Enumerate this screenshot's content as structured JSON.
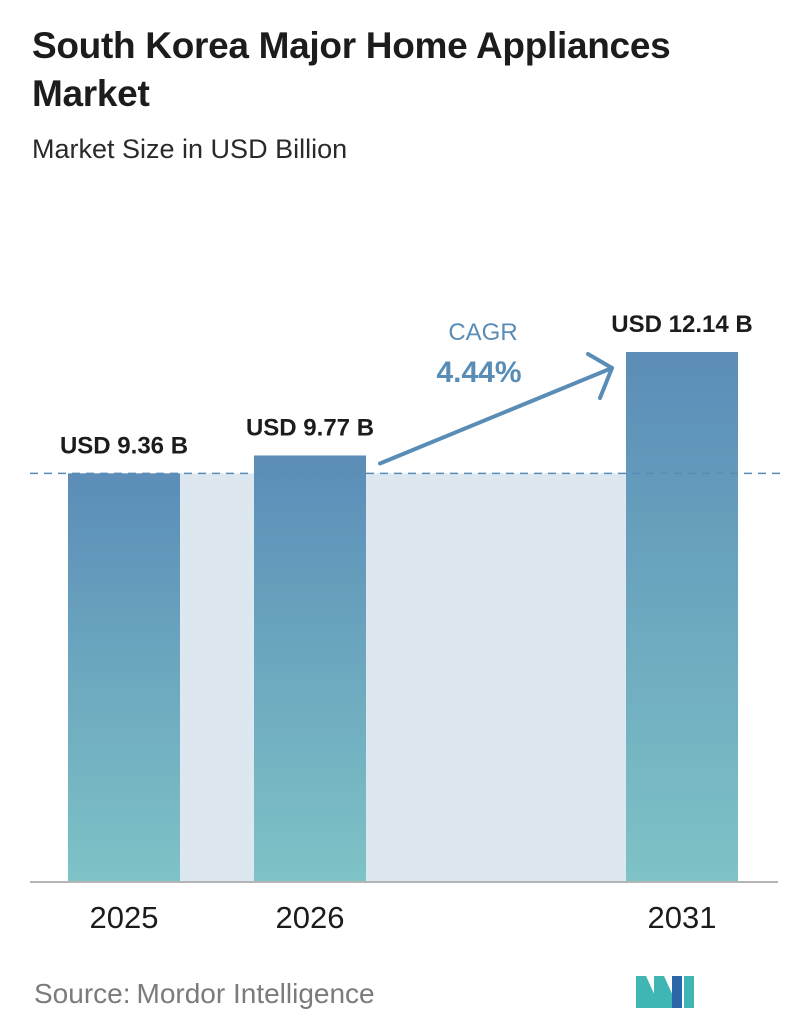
{
  "header": {
    "title": "South Korea Major Home Appliances Market",
    "subtitle": "Market Size in USD Billion"
  },
  "annotation": {
    "label": "CAGR",
    "value": "4.44%"
  },
  "footer": {
    "source_label": "Source:",
    "source_value": "Mordor Intelligence"
  },
  "colors": {
    "bar_top": "#5b8db8",
    "bar_bottom": "#7ec3c6",
    "shade": "#dde7ef",
    "accent": "#5a8db6",
    "dashed_line": "#5a8db6",
    "baseline": "#b5b5b5",
    "logo_teal": "#3fb6b3",
    "logo_blue": "#2a66a8"
  },
  "chart_data": {
    "type": "bar",
    "categories": [
      "2025",
      "2026",
      "2031"
    ],
    "values": [
      9.36,
      9.77,
      12.14
    ],
    "value_labels": [
      "USD 9.36 B",
      "USD 9.77 B",
      "USD 12.14 B"
    ],
    "title": "South Korea Major Home Appliances Market",
    "subtitle": "Market Size in USD Billion",
    "xlabel": "",
    "ylabel": "",
    "ylim": [
      0,
      12.14
    ],
    "grid": false,
    "legend": "none",
    "reference_line_value": 9.36,
    "cagr": "4.44%"
  }
}
